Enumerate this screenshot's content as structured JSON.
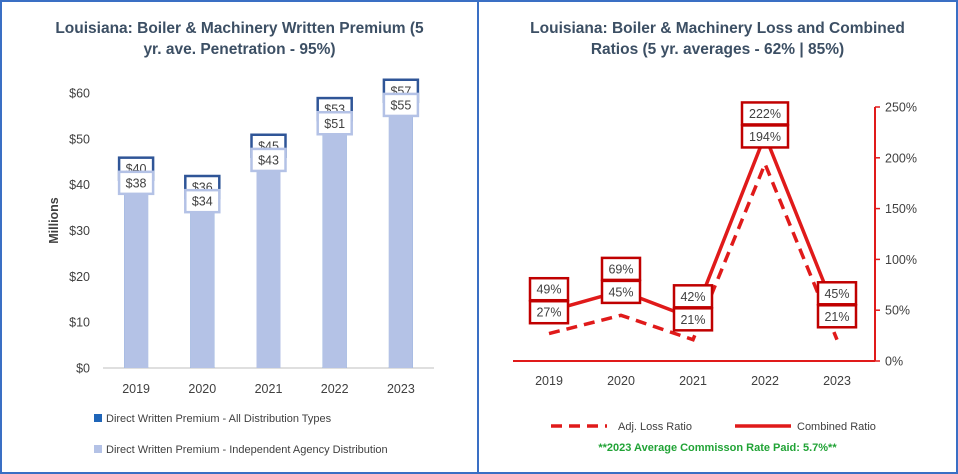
{
  "chart_data": [
    {
      "type": "bar",
      "title": "Louisiana: Boiler & Machinery Written Premium (5 yr. ave. Penetration - 95%)",
      "title_lines": [
        "Louisiana: Boiler & Machinery Written Premium (5",
        "yr. ave. Penetration - 95%)"
      ],
      "ylabel": "Millions",
      "ylim": [
        0,
        60
      ],
      "yticks": [
        0,
        10,
        20,
        30,
        40,
        50,
        60
      ],
      "ytick_labels": [
        "$0",
        "$10",
        "$20",
        "$30",
        "$40",
        "$50",
        "$60"
      ],
      "grid": false,
      "legend_position": "bottom",
      "categories": [
        "2019",
        "2020",
        "2021",
        "2022",
        "2023"
      ],
      "series": [
        {
          "name": "Direct Written Premium - All Distribution Types",
          "values": [
            40,
            36,
            45,
            53,
            57
          ],
          "labels": [
            "$40",
            "$36",
            "$45",
            "$53",
            "$57"
          ],
          "color": "#1f65b8"
        },
        {
          "name": "Direct Written Premium - Independent Agency Distribution",
          "values": [
            38,
            34,
            43,
            51,
            55
          ],
          "labels": [
            "$38",
            "$34",
            "$43",
            "$51",
            "$55"
          ],
          "color": "#b4c2e6"
        }
      ]
    },
    {
      "type": "line",
      "title": "Louisiana: Boiler & Machinery Loss and Combined Ratios (5 yr. averages - 62% | 85%)",
      "title_lines": [
        "Louisiana: Boiler & Machinery Loss and Combined",
        "Ratios (5 yr. averages - 62% | 85%)"
      ],
      "ylim": [
        0,
        250
      ],
      "yticks": [
        0,
        50,
        100,
        150,
        200,
        250
      ],
      "ytick_labels": [
        "0%",
        "50%",
        "100%",
        "150%",
        "200%",
        "250%"
      ],
      "y_axis_position": "right",
      "grid": false,
      "legend_position": "bottom",
      "categories": [
        "2019",
        "2020",
        "2021",
        "2022",
        "2023"
      ],
      "series": [
        {
          "name": "Adj. Loss Ratio",
          "style": "dashed",
          "values": [
            27,
            45,
            21,
            194,
            21
          ],
          "labels": [
            "27%",
            "45%",
            "21%",
            "194%",
            "21%"
          ],
          "color": "#e01a1a"
        },
        {
          "name": "Combined Ratio",
          "style": "solid",
          "values": [
            49,
            69,
            42,
            222,
            45
          ],
          "labels": [
            "49%",
            "69%",
            "42%",
            "222%",
            "45%"
          ],
          "color": "#e01a1a"
        }
      ],
      "note": "**2023 Average Commisson Rate Paid: 5.7%**"
    }
  ],
  "colors": {
    "frame": "#3a6fc4",
    "title_text": "#3c4f64",
    "axis_text": "#404040",
    "red": "#e01a1a",
    "label_box_red": "#c00000",
    "note": "#21a336"
  }
}
